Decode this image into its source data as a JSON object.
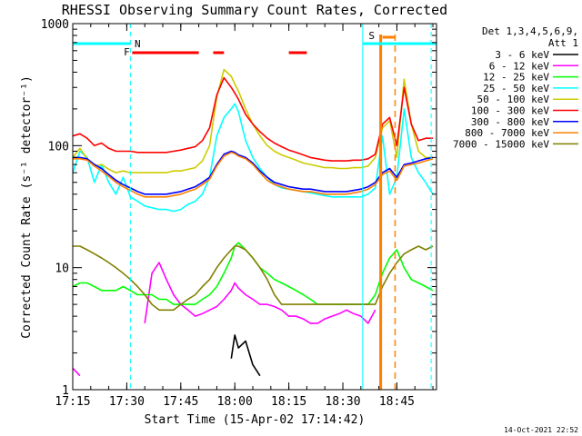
{
  "chart_data": {
    "type": "line",
    "title": "RHESSI Observing Summary Count Rates, Corrected",
    "xlabel": "Start Time (15-Apr-02 17:14:42)",
    "ylabel": "Corrected Count Rate (s⁻¹ detector⁻¹)",
    "yscale": "log",
    "ylim": [
      1,
      1000
    ],
    "xlim_minutes": [
      0,
      101
    ],
    "x_ticks": [
      {
        "label": "17:15",
        "min": 0
      },
      {
        "label": "17:30",
        "min": 15
      },
      {
        "label": "17:45",
        "min": 30
      },
      {
        "label": "18:00",
        "min": 45
      },
      {
        "label": "18:15",
        "min": 60
      },
      {
        "label": "18:30",
        "min": 75
      },
      {
        "label": "18:45",
        "min": 90
      }
    ],
    "y_ticks": [
      {
        "label": "1",
        "value": 1
      },
      {
        "label": "10",
        "value": 10
      },
      {
        "label": "100",
        "value": 100
      },
      {
        "label": "1000",
        "value": 1000
      }
    ],
    "legend_header": [
      "Det 1,3,4,5,6,9,",
      "Att 1"
    ],
    "legend_position": "right",
    "timestamp": "14-Oct-2021 22:52",
    "x_min": [
      0,
      2,
      4,
      6,
      8,
      10,
      12,
      14,
      16,
      18,
      20,
      22,
      24,
      26,
      28,
      30,
      32,
      34,
      36,
      38,
      40,
      42,
      44,
      45,
      46,
      48,
      50,
      52,
      54,
      56,
      58,
      60,
      62,
      64,
      66,
      68,
      70,
      72,
      74,
      76,
      78,
      80,
      82,
      84,
      86,
      88,
      90,
      92,
      94,
      96,
      98,
      100
    ],
    "series": [
      {
        "name": "3 - 6 keV",
        "color": "#000000",
        "values": [
          null,
          null,
          null,
          null,
          null,
          null,
          null,
          null,
          null,
          null,
          null,
          null,
          null,
          null,
          null,
          null,
          null,
          null,
          null,
          null,
          null,
          null,
          1.8,
          2.8,
          2.2,
          2.5,
          1.6,
          1.3,
          null,
          null,
          null,
          null,
          null,
          null,
          null,
          null,
          null,
          null,
          null,
          null,
          null,
          null,
          null,
          null,
          null,
          null,
          null,
          null,
          null,
          null,
          null,
          null
        ]
      },
      {
        "name": "6 - 12 keV",
        "color": "#ff00ff",
        "values": [
          1.5,
          1.3,
          null,
          null,
          null,
          null,
          null,
          null,
          null,
          null,
          3.5,
          9,
          11,
          8,
          6,
          5,
          4.5,
          4,
          4.2,
          4.5,
          4.8,
          5.5,
          6.5,
          7.5,
          6.8,
          6,
          5.5,
          5,
          5,
          4.8,
          4.5,
          4,
          4,
          3.8,
          3.5,
          3.5,
          3.8,
          4,
          4.2,
          4.5,
          4.2,
          4,
          3.5,
          4.5,
          null,
          null,
          null,
          null,
          null,
          null,
          null,
          null
        ]
      },
      {
        "name": "12 - 25 keV",
        "color": "#00ff00",
        "values": [
          7,
          7.5,
          7.5,
          7,
          6.5,
          6.5,
          6.5,
          7,
          6.5,
          6,
          6,
          6,
          5.5,
          5.5,
          5,
          5,
          5,
          5,
          5.5,
          6,
          7,
          9,
          12,
          15,
          16,
          14,
          12,
          10,
          9,
          8,
          7.5,
          7,
          6.5,
          6,
          5.5,
          5,
          5,
          5,
          5,
          5,
          5,
          5,
          5,
          6,
          9,
          12,
          14,
          10,
          8,
          7.5,
          7,
          6.5
        ]
      },
      {
        "name": "25 - 50 keV",
        "color": "#00ffff",
        "values": [
          60,
          90,
          80,
          50,
          70,
          50,
          40,
          55,
          38,
          35,
          32,
          31,
          30,
          30,
          29,
          30,
          33,
          35,
          40,
          55,
          120,
          170,
          200,
          220,
          190,
          110,
          80,
          65,
          55,
          48,
          45,
          44,
          43,
          42,
          41,
          40,
          39,
          38,
          38,
          38,
          38,
          38,
          40,
          45,
          120,
          40,
          55,
          200,
          80,
          60,
          50,
          40
        ]
      },
      {
        "name": "50 - 100 keV",
        "color": "#cccc00",
        "values": [
          80,
          95,
          78,
          68,
          70,
          64,
          60,
          62,
          60,
          60,
          60,
          60,
          60,
          60,
          62,
          62,
          64,
          66,
          75,
          100,
          250,
          420,
          370,
          320,
          280,
          200,
          150,
          120,
          100,
          90,
          84,
          80,
          76,
          72,
          70,
          68,
          66,
          66,
          65,
          65,
          66,
          66,
          68,
          80,
          140,
          160,
          80,
          350,
          150,
          90,
          80,
          80
        ]
      },
      {
        "name": "100 - 300 keV",
        "color": "#ff0000",
        "values": [
          120,
          125,
          115,
          100,
          105,
          95,
          90,
          90,
          90,
          88,
          88,
          88,
          88,
          88,
          90,
          92,
          95,
          98,
          110,
          140,
          260,
          360,
          300,
          270,
          240,
          180,
          150,
          130,
          115,
          105,
          98,
          92,
          88,
          84,
          80,
          78,
          76,
          75,
          75,
          75,
          76,
          76,
          78,
          85,
          150,
          170,
          100,
          300,
          150,
          110,
          115,
          115
        ]
      },
      {
        "name": "300 - 800 keV",
        "color": "#0000ff",
        "values": [
          80,
          80,
          78,
          70,
          65,
          58,
          52,
          48,
          45,
          42,
          40,
          40,
          40,
          40,
          41,
          42,
          44,
          46,
          50,
          55,
          70,
          85,
          90,
          88,
          84,
          80,
          72,
          62,
          55,
          50,
          48,
          46,
          45,
          44,
          44,
          43,
          42,
          42,
          42,
          42,
          43,
          44,
          46,
          50,
          60,
          65,
          55,
          70,
          72,
          75,
          78,
          80
        ]
      },
      {
        "name": "800 - 7000 keV",
        "color": "#ff8000",
        "values": [
          78,
          78,
          76,
          68,
          62,
          56,
          50,
          46,
          43,
          40,
          38,
          38,
          38,
          38,
          39,
          40,
          42,
          44,
          48,
          53,
          68,
          82,
          88,
          86,
          82,
          78,
          70,
          60,
          52,
          48,
          46,
          44,
          43,
          42,
          42,
          41,
          40,
          40,
          40,
          40,
          41,
          42,
          44,
          48,
          58,
          62,
          52,
          68,
          70,
          72,
          75,
          78
        ]
      },
      {
        "name": "7000 - 15000 keV",
        "color": "#808000",
        "values": [
          15,
          15,
          14,
          13,
          12,
          11,
          10,
          9,
          8,
          7,
          6,
          5,
          4.5,
          4.5,
          4.5,
          5,
          5.5,
          6,
          7,
          8,
          10,
          12,
          14,
          15,
          15,
          14,
          12,
          10,
          8,
          6,
          5,
          5,
          5,
          5,
          5,
          5,
          5,
          5,
          5,
          5,
          5,
          5,
          5,
          5,
          7,
          9,
          11,
          13,
          14,
          15,
          14,
          15
        ]
      }
    ],
    "annotations": [
      {
        "label": "N",
        "color": "#00ffff",
        "bar_start_min": 0,
        "bar_end_min": 16
      },
      {
        "label": "F",
        "color": "#ff0000"
      },
      {
        "label": "S",
        "color": "#ff8000"
      }
    ],
    "flare_segments_min": [
      [
        16.5,
        35
      ],
      [
        39,
        42
      ],
      [
        60,
        65
      ]
    ],
    "night_segments_min": [
      [
        0,
        16
      ],
      [
        80.5,
        101
      ]
    ],
    "saa_segment_min": [
      86,
      89.5
    ],
    "night_lines_min": [
      16,
      80.5,
      99.5
    ],
    "saa_lines_min": [
      85.5,
      89.5
    ]
  }
}
